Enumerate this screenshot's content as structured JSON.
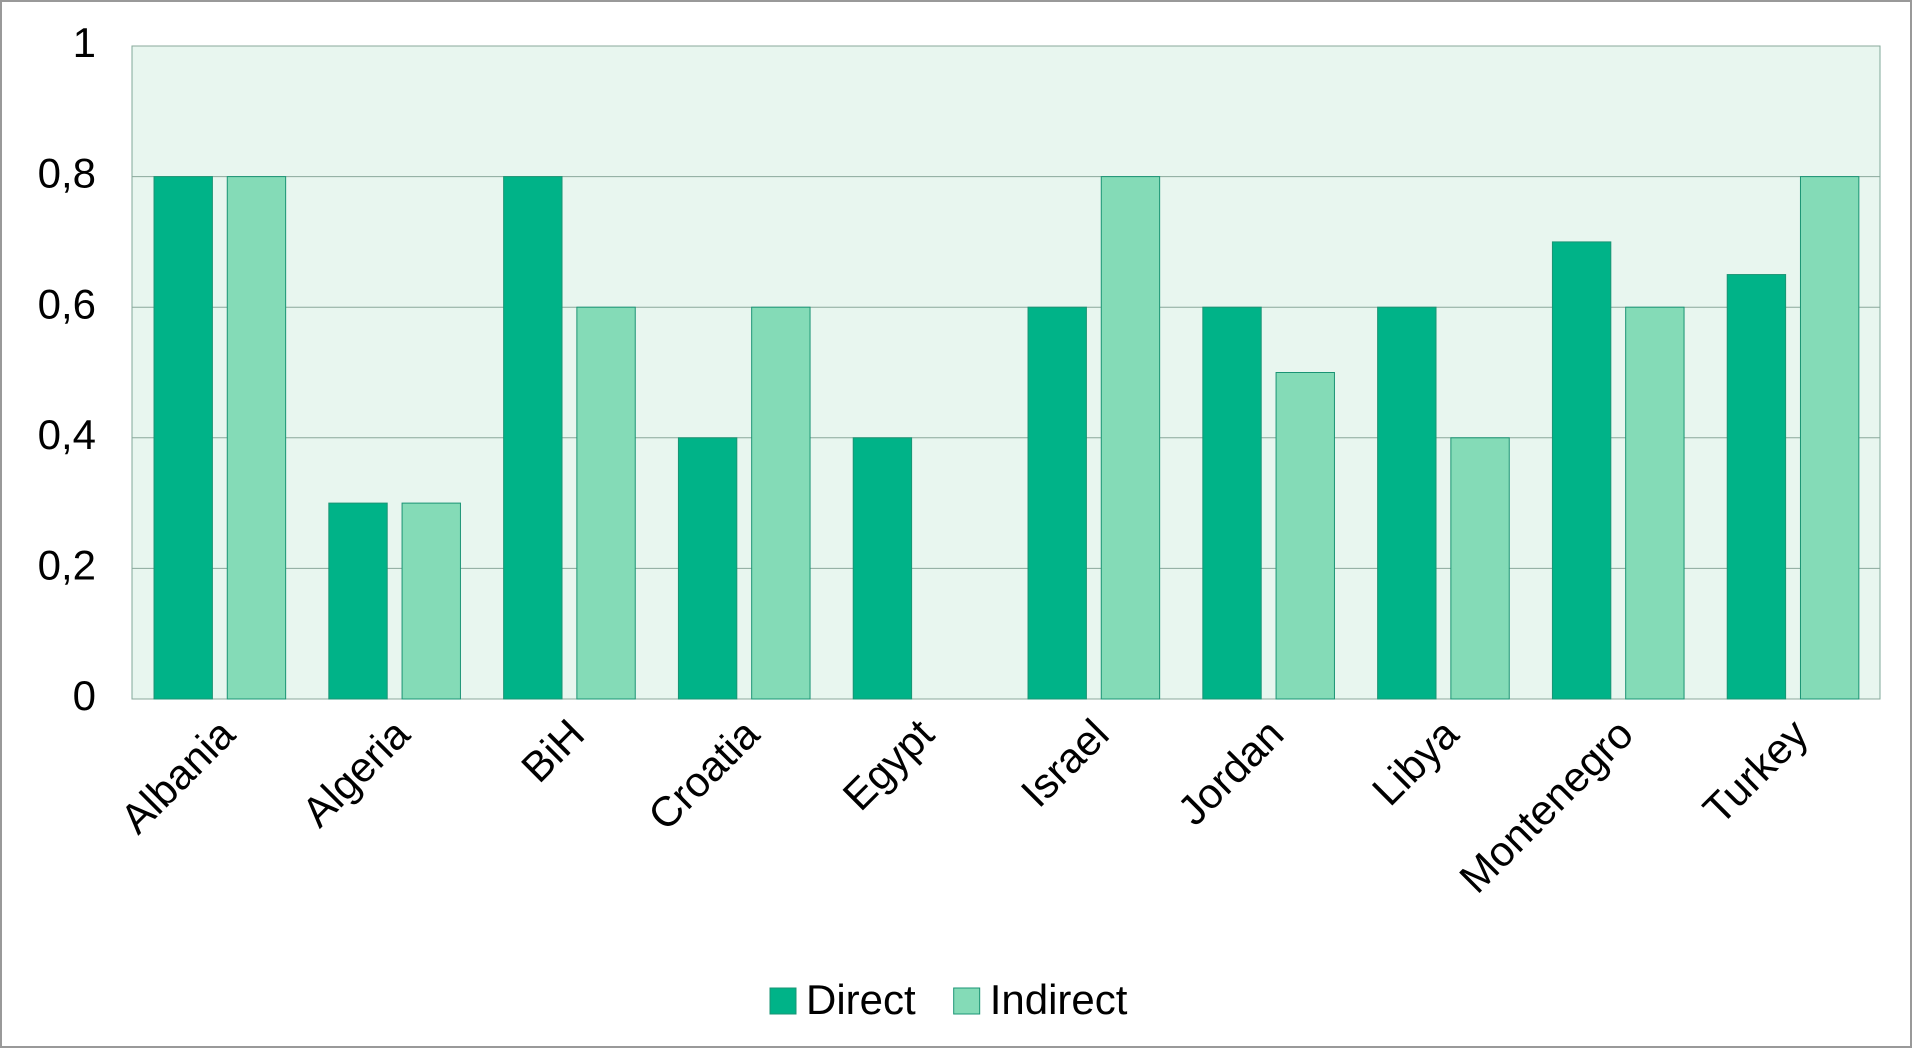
{
  "chart_data": {
    "type": "bar",
    "categories": [
      "Albania",
      "Algeria",
      "BiH",
      "Croatia",
      "Egypt",
      "Israel",
      "Jordan",
      "Libya",
      "Montenegro",
      "Turkey"
    ],
    "series": [
      {
        "name": "Direct",
        "color": "#00b388",
        "values": [
          0.8,
          0.3,
          0.8,
          0.4,
          0.4,
          0.6,
          0.6,
          0.6,
          0.7,
          0.65
        ]
      },
      {
        "name": "Indirect",
        "color": "#84dbb7",
        "values": [
          0.8,
          0.3,
          0.6,
          0.6,
          null,
          0.8,
          0.5,
          0.4,
          0.6,
          0.8
        ]
      }
    ],
    "ylim": [
      0,
      1
    ],
    "yticks": [
      0,
      {
        "value": 0.2,
        "label": "0,2"
      },
      {
        "value": 0.4,
        "label": "0,4"
      },
      {
        "value": 0.6,
        "label": "0,6"
      },
      {
        "value": 0.8,
        "label": "0,8"
      },
      1
    ],
    "grid": true,
    "legend": "bottom"
  }
}
